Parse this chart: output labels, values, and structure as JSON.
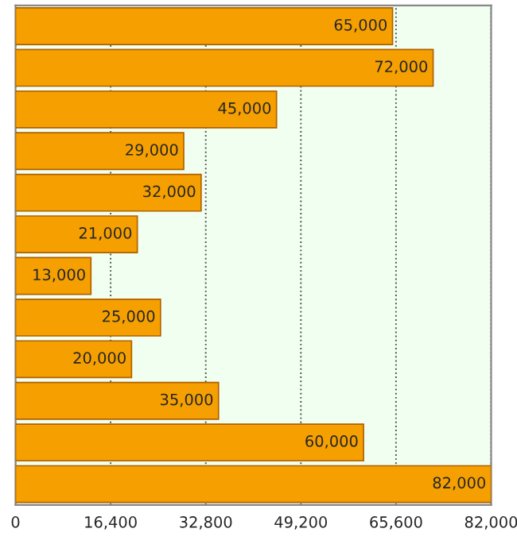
{
  "chart_data": {
    "type": "bar",
    "orientation": "horizontal",
    "categories": [
      null,
      null,
      null,
      null,
      null,
      null,
      null,
      null,
      null,
      null,
      null,
      null
    ],
    "values": [
      65000,
      72000,
      45000,
      29000,
      32000,
      21000,
      13000,
      25000,
      20000,
      35000,
      60000,
      82000
    ],
    "value_labels": [
      "65,000",
      "72,000",
      "45,000",
      "29,000",
      "32,000",
      "21,000",
      "13,000",
      "25,000",
      "20,000",
      "35,000",
      "60,000",
      "82,000"
    ],
    "color": "#f5a000",
    "xlim": [
      0,
      82000
    ],
    "xticks": [
      0,
      {
        "value": 16400,
        "label": "16,400"
      },
      {
        "value": 32800,
        "label": "32,800"
      },
      {
        "value": 49200,
        "label": "49,200"
      },
      {
        "value": 65600,
        "label": "65,600"
      },
      {
        "value": 82000,
        "label": "82,000"
      }
    ],
    "grid": "x"
  }
}
